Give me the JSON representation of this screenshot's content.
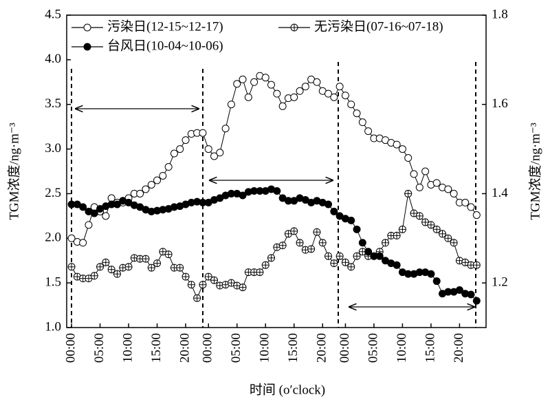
{
  "chart_data": {
    "type": "line",
    "xlabel": "时间 (o′clock)",
    "ylabel": "TGM浓度/ng·m⁻³",
    "y2label": "TGM浓度/ng·m⁻³",
    "x": [
      0,
      1,
      2,
      3,
      4,
      5,
      6,
      7,
      8,
      9,
      10,
      11,
      12,
      13,
      14,
      15,
      16,
      17,
      18,
      19,
      20,
      21,
      22,
      23,
      24,
      25,
      26,
      27,
      28,
      29,
      30,
      31,
      32,
      33,
      34,
      35,
      36,
      37,
      38,
      39,
      40,
      41,
      42,
      43,
      44,
      45,
      46,
      47,
      48,
      49,
      50,
      51,
      52,
      53,
      54,
      55,
      56,
      57,
      58,
      59,
      60,
      61,
      62,
      63,
      64,
      65,
      66,
      67,
      68,
      69,
      70,
      71
    ],
    "xlim": [
      -0.85,
      72.65
    ],
    "xticks": [
      {
        "value": 0,
        "label": "00:00"
      },
      {
        "value": 5,
        "label": "05:00"
      },
      {
        "value": 10,
        "label": "10:00"
      },
      {
        "value": 15,
        "label": "15:00"
      },
      {
        "value": 20,
        "label": "20:00"
      },
      {
        "value": 24,
        "label": "00:00"
      },
      {
        "value": 29,
        "label": "05:00"
      },
      {
        "value": 34,
        "label": "10:00"
      },
      {
        "value": 39,
        "label": "15:00"
      },
      {
        "value": 44,
        "label": "20:00"
      },
      {
        "value": 48,
        "label": "00:00"
      },
      {
        "value": 53,
        "label": "05:00"
      },
      {
        "value": 58,
        "label": "10:00"
      },
      {
        "value": 63,
        "label": "15:00"
      },
      {
        "value": 68,
        "label": "20:00"
      }
    ],
    "ylim": [
      1.0,
      4.5
    ],
    "yticks": [
      {
        "value": 1.0,
        "label": "1.0"
      },
      1.5,
      {
        "value": 2.0,
        "label": "2.0"
      },
      2.5,
      {
        "value": 3.0,
        "label": "3.0"
      },
      3.5,
      {
        "value": 4.0,
        "label": "4.0"
      },
      4.5
    ],
    "y2lim": [
      1.1,
      1.8
    ],
    "y2ticks": [
      1.2,
      1.4,
      1.6,
      1.8
    ],
    "series": [
      {
        "name": "污染日(12-15~12-17)",
        "marker": "open",
        "color": "#000000",
        "values": [
          2.0,
          1.96,
          1.95,
          2.15,
          2.35,
          2.3,
          2.25,
          2.45,
          2.4,
          2.4,
          2.45,
          2.5,
          2.5,
          2.55,
          2.6,
          2.65,
          2.7,
          2.8,
          2.95,
          3.0,
          3.1,
          3.17,
          3.18,
          3.18,
          3.0,
          2.92,
          2.96,
          3.23,
          3.5,
          3.73,
          3.78,
          3.58,
          3.75,
          3.82,
          3.8,
          3.72,
          3.62,
          3.48,
          3.57,
          3.58,
          3.65,
          3.7,
          3.78,
          3.75,
          3.65,
          3.62,
          3.58,
          3.7,
          3.6,
          3.5,
          3.4,
          3.3,
          3.2,
          3.12,
          3.12,
          3.1,
          3.07,
          3.05,
          3.0,
          2.9,
          2.72,
          2.57,
          2.75,
          2.6,
          2.62,
          2.57,
          2.55,
          2.5,
          2.4,
          2.4,
          2.35,
          2.26
        ]
      },
      {
        "name": "无污染日(07-16~07-18)",
        "marker": "cross",
        "color": "#000000",
        "axis": "y2",
        "values": [
          1.236,
          1.214,
          1.21,
          1.21,
          1.216,
          1.236,
          1.246,
          1.23,
          1.22,
          1.234,
          1.236,
          1.256,
          1.254,
          1.254,
          1.234,
          1.244,
          1.27,
          1.264,
          1.234,
          1.234,
          1.214,
          1.196,
          1.166,
          1.196,
          1.214,
          1.206,
          1.194,
          1.196,
          1.2,
          1.194,
          1.19,
          1.224,
          1.224,
          1.224,
          1.24,
          1.256,
          1.28,
          1.284,
          1.31,
          1.316,
          1.29,
          1.274,
          1.276,
          1.314,
          1.29,
          1.26,
          1.244,
          1.26,
          1.246,
          1.236,
          1.26,
          1.27,
          1.26,
          1.26,
          1.27,
          1.29,
          1.306,
          1.306,
          1.32,
          1.4,
          1.356,
          1.35,
          1.336,
          1.33,
          1.32,
          1.31,
          1.3,
          1.29,
          1.25,
          1.246,
          1.24,
          1.24
        ]
      },
      {
        "name": "台风日(10-04~10-06)",
        "marker": "filled",
        "color": "#000000",
        "values": [
          2.38,
          2.38,
          2.35,
          2.3,
          2.28,
          2.33,
          2.36,
          2.38,
          2.38,
          2.42,
          2.4,
          2.37,
          2.35,
          2.32,
          2.3,
          2.31,
          2.32,
          2.33,
          2.35,
          2.36,
          2.38,
          2.4,
          2.41,
          2.4,
          2.4,
          2.43,
          2.45,
          2.48,
          2.5,
          2.5,
          2.48,
          2.52,
          2.53,
          2.53,
          2.53,
          2.55,
          2.53,
          2.45,
          2.42,
          2.42,
          2.45,
          2.43,
          2.4,
          2.42,
          2.4,
          2.38,
          2.3,
          2.25,
          2.22,
          2.2,
          2.1,
          1.95,
          1.85,
          1.8,
          1.8,
          1.75,
          1.72,
          1.7,
          1.62,
          1.6,
          1.6,
          1.62,
          1.62,
          1.6,
          1.52,
          1.38,
          1.4,
          1.4,
          1.42,
          1.38,
          1.37,
          1.3
        ]
      }
    ]
  }
}
